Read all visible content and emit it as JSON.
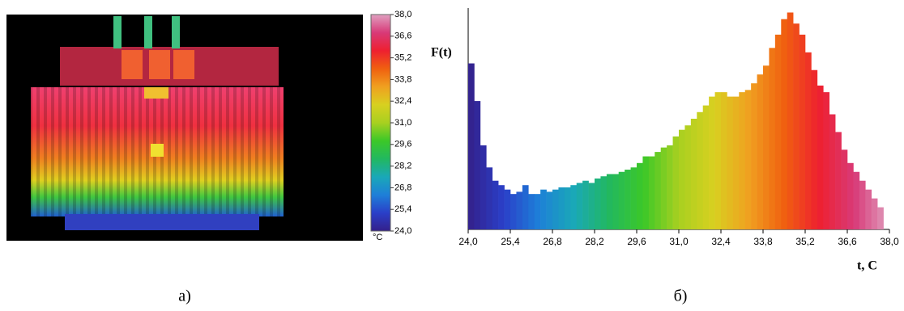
{
  "thermal_image": {
    "caption": "а)",
    "colorbar": {
      "lim": [
        24,
        38
      ],
      "unit": "°C",
      "ticks": [
        {
          "value": 24,
          "label": "24,0"
        },
        {
          "value": 25.4,
          "label": "25,4"
        },
        {
          "value": 26.8,
          "label": "26,8"
        },
        {
          "value": 28.2,
          "label": "28,2"
        },
        {
          "value": 29.6,
          "label": "29,6"
        },
        {
          "value": 31,
          "label": "31,0"
        },
        {
          "value": 32.4,
          "label": "32,4"
        },
        {
          "value": 33.8,
          "label": "33,8"
        },
        {
          "value": 35.2,
          "label": "35,2"
        },
        {
          "value": 36.6,
          "label": "36,6"
        },
        {
          "value": 38,
          "label": "38,0"
        }
      ]
    }
  },
  "chart_data": {
    "type": "histogram",
    "caption": "б)",
    "ylabel": "F(t)",
    "xlabel": "t, C",
    "colormap": [
      "#34208a",
      "#2a3fc8",
      "#1e7fd8",
      "#1aa8b8",
      "#22b860",
      "#3cc828",
      "#a8d020",
      "#d8d020",
      "#f0a020",
      "#f06010",
      "#ee2030",
      "#d83a78",
      "#e0a0c0"
    ],
    "xlim": [
      24,
      38
    ],
    "ylim": [
      0,
      100
    ],
    "xticks": [
      {
        "value": 24,
        "label": "24,0"
      },
      {
        "value": 25.4,
        "label": "25,4"
      },
      {
        "value": 26.8,
        "label": "26,8"
      },
      {
        "value": 28.2,
        "label": "28,2"
      },
      {
        "value": 29.6,
        "label": "29,6"
      },
      {
        "value": 31,
        "label": "31,0"
      },
      {
        "value": 32.4,
        "label": "32,4"
      },
      {
        "value": 33.8,
        "label": "33,8"
      },
      {
        "value": 35.2,
        "label": "35,2"
      },
      {
        "value": 36.6,
        "label": "36,6"
      },
      {
        "value": 38,
        "label": "38,0"
      }
    ],
    "bins": [
      24,
      24.2,
      24.4,
      24.6,
      24.8,
      25,
      25.2,
      25.4,
      25.6,
      25.8,
      26,
      26.2,
      26.4,
      26.6,
      26.8,
      27,
      27.2,
      27.4,
      27.6,
      27.8,
      28,
      28.2,
      28.4,
      28.6,
      28.8,
      29,
      29.2,
      29.4,
      29.6,
      29.8,
      30,
      30.2,
      30.4,
      30.6,
      30.8,
      31,
      31.2,
      31.4,
      31.6,
      31.8,
      32,
      32.2,
      32.4,
      32.6,
      32.8,
      33,
      33.2,
      33.4,
      33.6,
      33.8,
      34,
      34.2,
      34.4,
      34.6,
      34.8,
      35,
      35.2,
      35.4,
      35.6,
      35.8,
      36,
      36.2,
      36.4,
      36.6,
      36.8,
      37,
      37.2,
      37.4,
      37.6,
      37.8
    ],
    "values": [
      75,
      58,
      38,
      28,
      22,
      20,
      18,
      16,
      17,
      20,
      16,
      16,
      18,
      17,
      18,
      19,
      19,
      20,
      21,
      22,
      21,
      23,
      24,
      25,
      25,
      26,
      27,
      28,
      30,
      33,
      33,
      35,
      37,
      38,
      42,
      45,
      47,
      50,
      53,
      56,
      60,
      62,
      62,
      60,
      60,
      62,
      63,
      66,
      70,
      74,
      82,
      88,
      95,
      98,
      93,
      88,
      80,
      72,
      65,
      62,
      52,
      44,
      36,
      30,
      26,
      22,
      18,
      14,
      10
    ]
  }
}
